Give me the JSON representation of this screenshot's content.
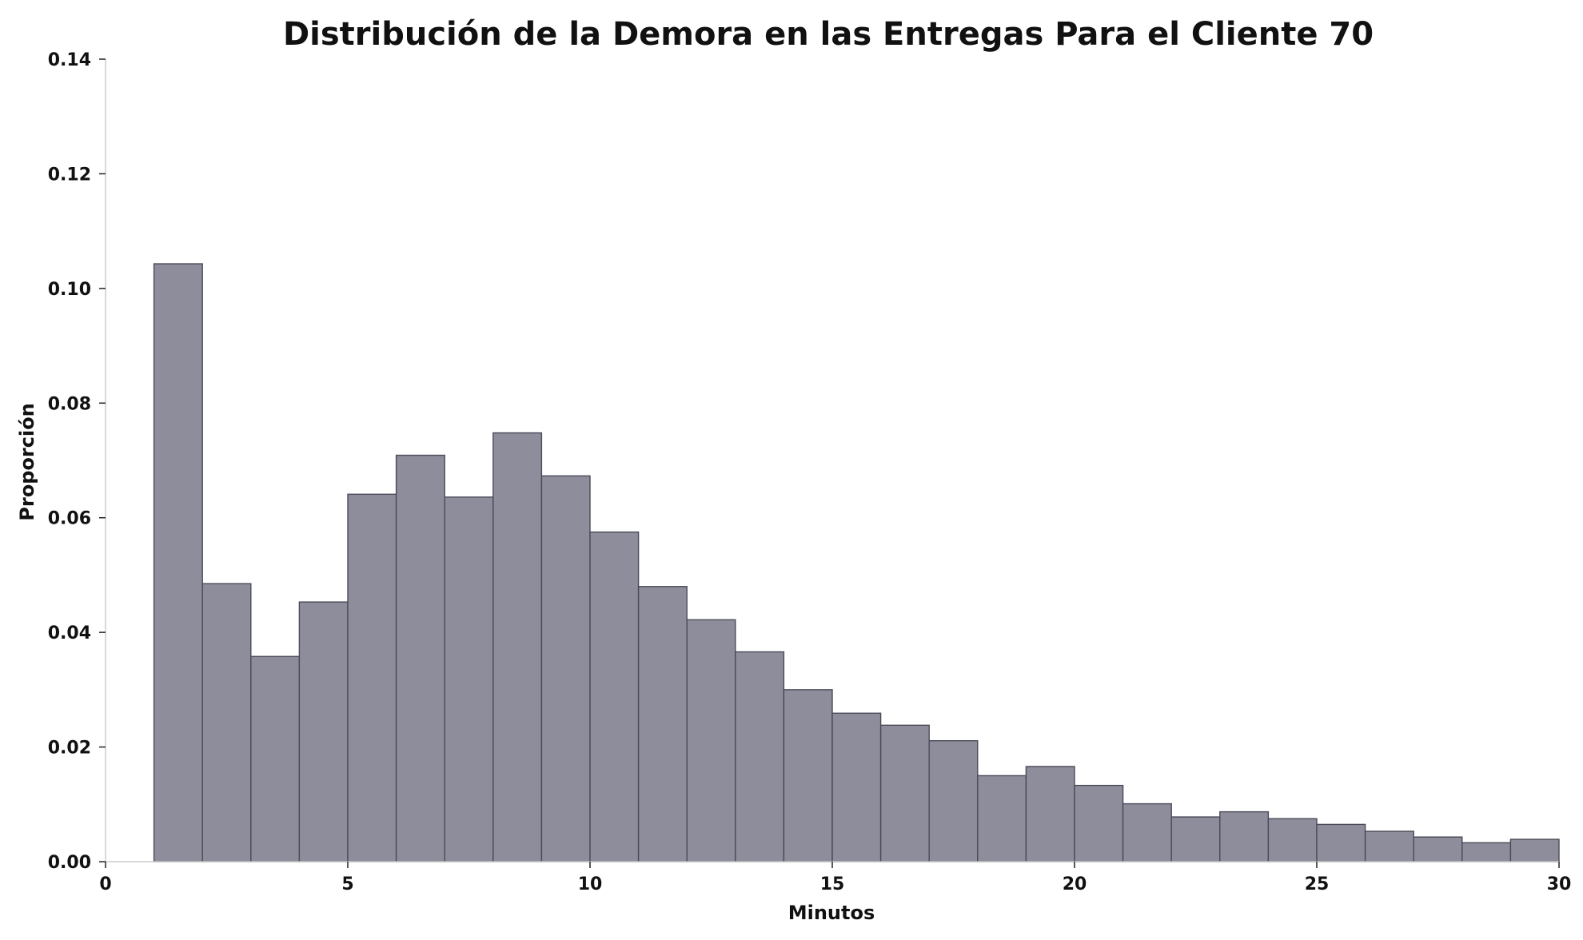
{
  "chart_data": {
    "type": "bar",
    "title": "Distribución de la Demora en las Entregas Para el Cliente 70",
    "xlabel": "Minutos",
    "ylabel": "Proporción",
    "xlim": [
      0,
      30
    ],
    "ylim": [
      0,
      0.14
    ],
    "xticks": [
      "0",
      "5",
      "10",
      "15",
      "20",
      "25",
      "30"
    ],
    "yticks": [
      "0.00",
      "0.02",
      "0.04",
      "0.06",
      "0.08",
      "0.10",
      "0.12",
      "0.14"
    ],
    "bin_width": 1,
    "bins_start": [
      1,
      2,
      3,
      4,
      5,
      6,
      7,
      8,
      9,
      10,
      11,
      12,
      13,
      14,
      15,
      16,
      17,
      18,
      19,
      20,
      21,
      22,
      23,
      24,
      25,
      26,
      27,
      28,
      29
    ],
    "values": [
      0.1043,
      0.0485,
      0.0358,
      0.0453,
      0.0641,
      0.0709,
      0.0636,
      0.0748,
      0.0673,
      0.0575,
      0.048,
      0.0422,
      0.0366,
      0.03,
      0.0259,
      0.0238,
      0.0211,
      0.015,
      0.0166,
      0.0133,
      0.0101,
      0.0078,
      0.0087,
      0.0075,
      0.0065,
      0.0053,
      0.0043,
      0.0033,
      0.0039
    ],
    "grid": false,
    "colors": {
      "bar_fill": "#8e8d9c",
      "bar_edge": "#4a4a58"
    }
  }
}
